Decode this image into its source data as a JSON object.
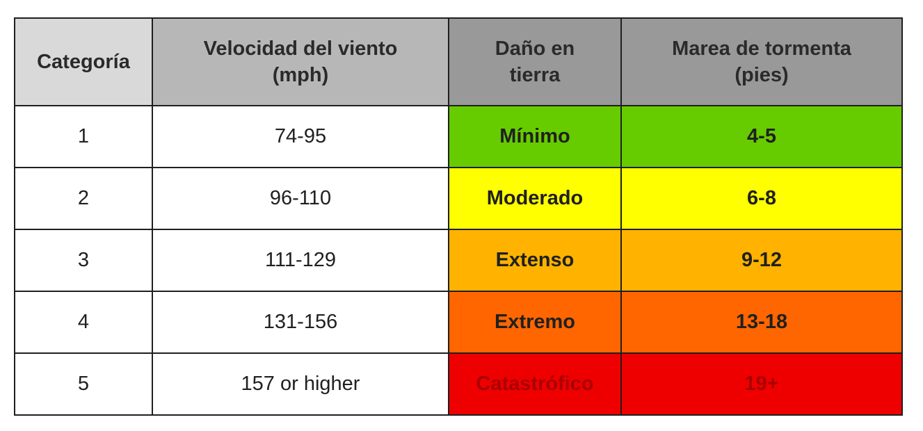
{
  "table": {
    "headers": [
      {
        "lines": [
          "Categoría"
        ],
        "bg": "#d9d9d9"
      },
      {
        "lines": [
          "Velocidad del viento",
          "(mph)"
        ],
        "bg": "#b7b7b7"
      },
      {
        "lines": [
          "Daño en",
          "tierra"
        ],
        "bg": "#999999"
      },
      {
        "lines": [
          "Marea de tormenta",
          "(pies)"
        ],
        "bg": "#999999"
      }
    ],
    "rows": [
      {
        "category": "1",
        "wind": "74-95",
        "damage": "Mínimo",
        "surge": "4-5",
        "color": "#66cc00"
      },
      {
        "category": "2",
        "wind": "96-110",
        "damage": "Moderado",
        "surge": "6-8",
        "color": "#ffff00"
      },
      {
        "category": "3",
        "wind": "111-129",
        "damage": "Extenso",
        "surge": "9-12",
        "color": "#ffb300"
      },
      {
        "category": "4",
        "wind": "131-156",
        "damage": "Extremo",
        "surge": "13-18",
        "color": "#ff6600"
      },
      {
        "category": "5",
        "wind": "157 or higher",
        "damage": "Catastrófico",
        "surge": "19+",
        "color": "#ee0000",
        "text_color": "#aa0000"
      }
    ]
  }
}
